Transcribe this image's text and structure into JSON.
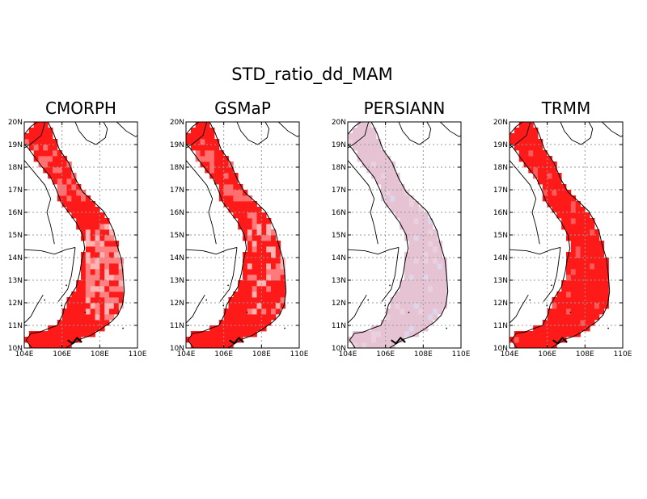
{
  "figure": {
    "title": "STD_ratio_dd_MAM"
  },
  "axes": {
    "lon_range": [
      104,
      110
    ],
    "lat_range": [
      10,
      20
    ],
    "lon_tick_labels": [
      "104E",
      "106E",
      "108E",
      "110E"
    ],
    "lat_tick_labels": [
      "10N",
      "11N",
      "12N",
      "13N",
      "14N",
      "15N",
      "16N",
      "17N",
      "18N",
      "19N",
      "20N"
    ],
    "grid": "dotted, every 2 degrees longitude and 1 degree latitude"
  },
  "panels": [
    {
      "title": "CMORPH",
      "fill_color": "#ff1a1a",
      "light_cells": "many in south-central region"
    },
    {
      "title": "GSMaP",
      "fill_color": "#ff1a1a",
      "light_cells": "some in central and south"
    },
    {
      "title": "PERSIANN",
      "fill_color": "#e6c3d3",
      "light_cells": "few bluish cells"
    },
    {
      "title": "TRMM",
      "fill_color": "#ff1a1a",
      "light_cells": "very few"
    }
  ],
  "colors": {
    "red": "#ff1a1a",
    "light_red": "#ff9a9a",
    "pink": "#e6c3d3",
    "pale_blue": "#dcd6ec",
    "coast": "#000000",
    "grid": "#9a9a9a"
  }
}
